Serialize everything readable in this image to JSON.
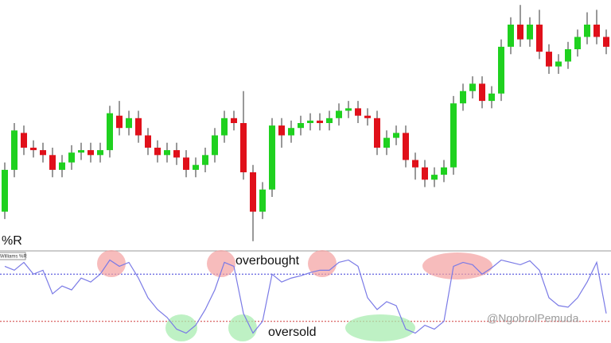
{
  "chart_data": [
    {
      "type": "candlestick",
      "open": [
        14,
        31,
        46,
        40,
        39,
        37,
        31,
        34,
        38,
        39,
        37,
        39,
        53,
        48,
        52,
        45,
        40,
        37,
        39,
        36,
        31,
        33,
        37,
        45,
        52,
        50,
        30,
        14,
        23,
        49,
        45,
        48,
        50,
        51,
        50,
        52,
        55,
        56,
        53,
        52,
        40,
        44,
        46,
        35,
        32,
        27,
        29,
        32,
        58,
        63,
        66,
        59,
        62,
        81,
        90,
        84,
        90,
        79,
        73,
        75,
        80,
        85,
        90,
        85
      ],
      "close": [
        31,
        47,
        40,
        39,
        37,
        31,
        34,
        38,
        39,
        37,
        39,
        54,
        48,
        52,
        45,
        40,
        37,
        39,
        36,
        31,
        33,
        37,
        45,
        52,
        50,
        30,
        14,
        23,
        49,
        45,
        48,
        50,
        51,
        50,
        52,
        55,
        56,
        53,
        52,
        40,
        44,
        46,
        35,
        32,
        27,
        29,
        32,
        58,
        63,
        66,
        59,
        62,
        81,
        90,
        84,
        90,
        79,
        73,
        75,
        80,
        85,
        90,
        85,
        81
      ],
      "high": [
        34,
        50,
        49,
        43,
        42,
        40,
        37,
        41,
        42,
        42,
        42,
        57,
        59,
        55,
        55,
        48,
        43,
        42,
        42,
        39,
        36,
        40,
        48,
        55,
        55,
        63,
        33,
        26,
        52,
        52,
        51,
        53,
        54,
        54,
        55,
        58,
        59,
        59,
        56,
        55,
        47,
        49,
        49,
        38,
        35,
        32,
        35,
        61,
        66,
        69,
        69,
        65,
        84,
        93,
        98,
        93,
        96,
        82,
        78,
        83,
        88,
        95,
        96,
        88
      ],
      "low": [
        11,
        28,
        37,
        36,
        34,
        28,
        28,
        31,
        35,
        34,
        34,
        36,
        45,
        45,
        42,
        37,
        34,
        34,
        33,
        28,
        28,
        30,
        34,
        42,
        47,
        27,
        2,
        11,
        20,
        40,
        42,
        45,
        47,
        47,
        47,
        49,
        52,
        50,
        49,
        37,
        37,
        41,
        32,
        27,
        24,
        24,
        26,
        29,
        55,
        60,
        56,
        56,
        59,
        78,
        81,
        81,
        76,
        70,
        70,
        72,
        77,
        82,
        82,
        78
      ],
      "ylim": [
        0,
        100
      ],
      "up_color": "#1fd11f",
      "down_color": "#e0101a"
    },
    {
      "type": "line",
      "title": "%R",
      "label": "Williams %R",
      "values": [
        -10,
        -15,
        -5,
        -20,
        -15,
        -45,
        -35,
        -40,
        -25,
        -30,
        -20,
        -2,
        -10,
        -5,
        -25,
        -50,
        -65,
        -75,
        -90,
        -95,
        -85,
        -65,
        -40,
        -5,
        -10,
        -70,
        -95,
        -80,
        -20,
        -30,
        -25,
        -22,
        -18,
        -15,
        -15,
        -5,
        -2,
        -10,
        -50,
        -65,
        -55,
        -60,
        -90,
        -95,
        -85,
        -90,
        -80,
        -10,
        -5,
        -8,
        -20,
        -12,
        -2,
        -5,
        -8,
        -3,
        -15,
        -50,
        -60,
        -62,
        -50,
        -30,
        -5,
        -70
      ],
      "ylim": [
        -100,
        0
      ],
      "levels": [
        -20,
        -80
      ],
      "level_colors": [
        "#3a3ad8",
        "#d03a3a"
      ],
      "color": "#7a7ae6",
      "annotations": [
        "overbought",
        "oversold"
      ]
    }
  ],
  "watermark": "@NgobrolPemuda"
}
